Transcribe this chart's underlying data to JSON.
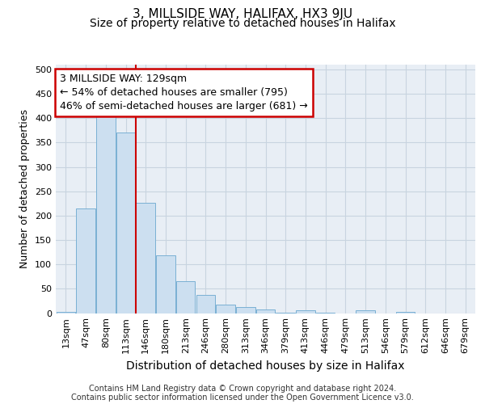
{
  "title_line1": "3, MILLSIDE WAY, HALIFAX, HX3 9JU",
  "title_line2": "Size of property relative to detached houses in Halifax",
  "xlabel": "Distribution of detached houses by size in Halifax",
  "ylabel": "Number of detached properties",
  "categories": [
    "13sqm",
    "47sqm",
    "80sqm",
    "113sqm",
    "146sqm",
    "180sqm",
    "213sqm",
    "246sqm",
    "280sqm",
    "313sqm",
    "346sqm",
    "379sqm",
    "413sqm",
    "446sqm",
    "479sqm",
    "513sqm",
    "546sqm",
    "579sqm",
    "612sqm",
    "646sqm",
    "679sqm"
  ],
  "values": [
    2,
    214,
    405,
    370,
    226,
    118,
    65,
    38,
    17,
    12,
    7,
    1,
    6,
    1,
    0,
    6,
    0,
    2,
    0,
    0,
    0
  ],
  "bar_color": "#ccdff0",
  "bar_edge_color": "#7ab0d4",
  "grid_color": "#c8d4e0",
  "background_color": "#e8eef5",
  "annotation_line1": "3 MILLSIDE WAY: 129sqm",
  "annotation_line2": "← 54% of detached houses are smaller (795)",
  "annotation_line3": "46% of semi-detached houses are larger (681) →",
  "annotation_box_color": "#ffffff",
  "annotation_box_edge_color": "#cc0000",
  "vline_x": 3.5,
  "vline_color": "#cc0000",
  "ylim": [
    0,
    510
  ],
  "yticks": [
    0,
    50,
    100,
    150,
    200,
    250,
    300,
    350,
    400,
    450,
    500
  ],
  "footer_line1": "Contains HM Land Registry data © Crown copyright and database right 2024.",
  "footer_line2": "Contains public sector information licensed under the Open Government Licence v3.0.",
  "title_fontsize": 11,
  "subtitle_fontsize": 10,
  "xlabel_fontsize": 10,
  "ylabel_fontsize": 9,
  "tick_fontsize": 8,
  "footer_fontsize": 7,
  "annotation_fontsize": 9
}
